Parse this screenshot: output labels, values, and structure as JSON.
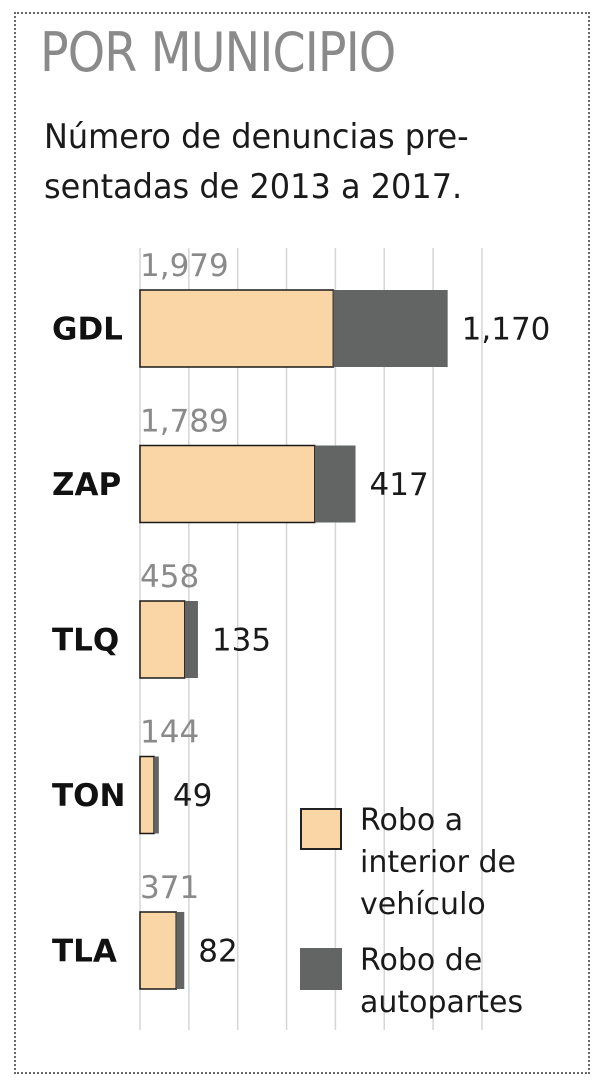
{
  "title": "POR MUNICIPIO",
  "subtitle": "Número de denuncias pre-sentadas de 2013 a 2017.",
  "colors": {
    "interior": "#fad5a5",
    "autopartes": "#636464",
    "grid": "#d6d6d6",
    "frame": "#6a6a6a"
  },
  "legend": {
    "items": [
      {
        "label": "Robo a interior de vehículo",
        "color": "#fad5a5"
      },
      {
        "label": "Robo de autopartes",
        "color": "#636464"
      }
    ]
  },
  "chart_data": {
    "type": "bar",
    "orientation": "horizontal",
    "stacked": true,
    "categories": [
      "GDL",
      "ZAP",
      "TLQ",
      "TON",
      "TLA"
    ],
    "series": [
      {
        "name": "Robo a interior de vehículo",
        "values": [
          1979,
          1789,
          458,
          144,
          371
        ],
        "value_labels": [
          "1,979",
          "1,789",
          "458",
          "144",
          "371"
        ]
      },
      {
        "name": "Robo de autopartes",
        "values": [
          1170,
          417,
          135,
          49,
          82
        ],
        "value_labels": [
          "1,170",
          "417",
          "135",
          "49",
          "82"
        ]
      }
    ],
    "title": "POR MUNICIPIO",
    "subtitle": "Número de denuncias pre-sentadas de 2013 a 2017.",
    "xlabel": "",
    "ylabel": "",
    "xlim": [
      0,
      3500
    ],
    "grid": true,
    "legend_position": "bottom-right"
  }
}
